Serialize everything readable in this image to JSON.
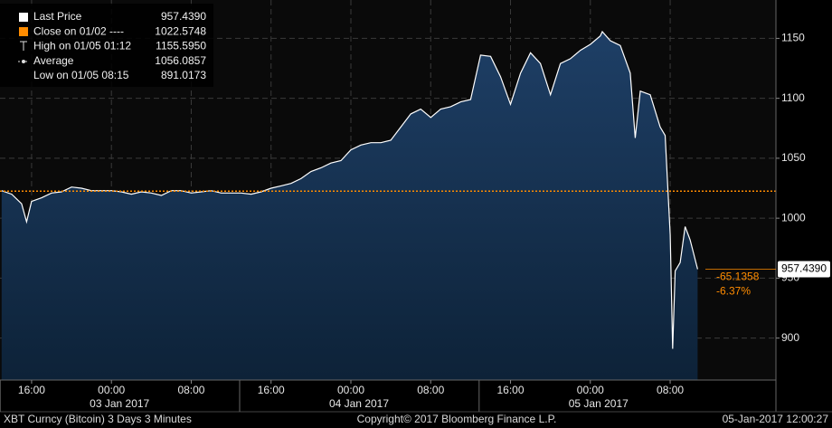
{
  "chart_data": {
    "type": "area",
    "title": "XBT Curncy (Bitcoin) 3 Days 3 Minutes",
    "copyright": "Copyright© 2017 Bloomberg Finance L.P.",
    "timestamp": "05-Jan-2017 12:00:27",
    "x": [
      "2017-01-02T13:00",
      "2017-01-02T14:00",
      "2017-01-02T15:00",
      "2017-01-02T15:30",
      "2017-01-02T16:00",
      "2017-01-02T17:00",
      "2017-01-02T18:00",
      "2017-01-02T19:00",
      "2017-01-02T20:00",
      "2017-01-02T21:00",
      "2017-01-02T22:00",
      "2017-01-02T23:00",
      "2017-01-03T00:00",
      "2017-01-03T01:00",
      "2017-01-03T02:00",
      "2017-01-03T03:00",
      "2017-01-03T04:00",
      "2017-01-03T05:00",
      "2017-01-03T06:00",
      "2017-01-03T07:00",
      "2017-01-03T08:00",
      "2017-01-03T09:00",
      "2017-01-03T10:00",
      "2017-01-03T11:00",
      "2017-01-03T12:00",
      "2017-01-03T13:00",
      "2017-01-03T14:00",
      "2017-01-03T15:00",
      "2017-01-03T16:00",
      "2017-01-03T17:00",
      "2017-01-03T18:00",
      "2017-01-03T19:00",
      "2017-01-03T20:00",
      "2017-01-03T21:00",
      "2017-01-03T22:00",
      "2017-01-03T23:00",
      "2017-01-04T00:00",
      "2017-01-04T01:00",
      "2017-01-04T02:00",
      "2017-01-04T03:00",
      "2017-01-04T04:00",
      "2017-01-04T05:00",
      "2017-01-04T06:00",
      "2017-01-04T07:00",
      "2017-01-04T08:00",
      "2017-01-04T09:00",
      "2017-01-04T10:00",
      "2017-01-04T11:00",
      "2017-01-04T12:00",
      "2017-01-04T13:00",
      "2017-01-04T14:00",
      "2017-01-04T15:00",
      "2017-01-04T16:00",
      "2017-01-04T17:00",
      "2017-01-04T18:00",
      "2017-01-04T19:00",
      "2017-01-04T20:00",
      "2017-01-04T21:00",
      "2017-01-04T22:00",
      "2017-01-04T23:00",
      "2017-01-05T00:00",
      "2017-01-05T01:00",
      "2017-01-05T01:12",
      "2017-01-05T02:00",
      "2017-01-05T03:00",
      "2017-01-05T04:00",
      "2017-01-05T04:30",
      "2017-01-05T05:00",
      "2017-01-05T06:00",
      "2017-01-05T07:00",
      "2017-01-05T07:30",
      "2017-01-05T08:00",
      "2017-01-05T08:15",
      "2017-01-05T08:30",
      "2017-01-05T09:00",
      "2017-01-05T09:30",
      "2017-01-05T10:00",
      "2017-01-05T10:45"
    ],
    "series": [
      {
        "name": "Last Price",
        "color": "#ffffff",
        "fill": "#14304f",
        "values": [
          1023,
          1020,
          1012,
          997,
          1014,
          1017,
          1021,
          1022,
          1026,
          1025,
          1023,
          1023,
          1023,
          1022,
          1020,
          1022,
          1021,
          1019,
          1023,
          1023,
          1021,
          1022,
          1023,
          1021,
          1021,
          1021,
          1020,
          1022,
          1025,
          1027,
          1029,
          1033,
          1039,
          1042,
          1046,
          1048,
          1057,
          1061,
          1063,
          1063,
          1065,
          1076,
          1087,
          1091,
          1084,
          1091,
          1093,
          1097,
          1099,
          1136,
          1135,
          1118,
          1095,
          1121,
          1138,
          1129,
          1103,
          1129,
          1133,
          1140,
          1145,
          1152,
          1155.595,
          1148,
          1144,
          1121,
          1067,
          1106,
          1103,
          1076,
          1069,
          986,
          891.0173,
          956,
          963,
          993,
          982,
          957.439
        ]
      }
    ],
    "legend": [
      {
        "name": "Last Price",
        "value": 957.439,
        "label": "957.4390"
      },
      {
        "name": "Close on 01/02 ----",
        "value": 1022.5748,
        "label": "1022.5748",
        "color": "#ff8c00"
      },
      {
        "name": "High on 01/05 01:12",
        "value": 1155.595,
        "label": "1155.5950"
      },
      {
        "name": "Average",
        "value": 1056.0857,
        "label": "1056.0857"
      },
      {
        "name": "Low on 01/05 08:15",
        "value": 891.0173,
        "label": "891.0173"
      }
    ],
    "last_label": {
      "value": 957.439,
      "label": "957.4390"
    },
    "change": -65.1358,
    "change_pct": {
      "value": -6.37,
      "label": "-6.37%"
    },
    "xlim": [
      "2017-01-02T12:50",
      "2017-01-05T18:36"
    ],
    "ylim": [
      865,
      1182
    ],
    "yticks": [
      900,
      950,
      1000,
      1050,
      1100,
      1150
    ],
    "xticks": [
      {
        "value": "2017-01-02T16:00",
        "label": "16:00"
      },
      {
        "value": "2017-01-03T00:00",
        "label": "00:00"
      },
      {
        "value": "2017-01-03T08:00",
        "label": "08:00"
      },
      {
        "value": "2017-01-03T16:00",
        "label": "16:00"
      },
      {
        "value": "2017-01-04T00:00",
        "label": "00:00"
      },
      {
        "value": "2017-01-04T08:00",
        "label": "08:00"
      },
      {
        "value": "2017-01-04T16:00",
        "label": "16:00"
      },
      {
        "value": "2017-01-05T00:00",
        "label": "00:00"
      },
      {
        "value": "2017-01-05T08:00",
        "label": "08:00"
      }
    ],
    "date_ticks": [
      {
        "value": "2017-01-03T00:00",
        "label": "03 Jan 2017"
      },
      {
        "value": "2017-01-04T00:00",
        "label": "04 Jan 2017"
      },
      {
        "value": "2017-01-05T00:00",
        "label": "05 Jan 2017"
      }
    ],
    "grid": true
  }
}
